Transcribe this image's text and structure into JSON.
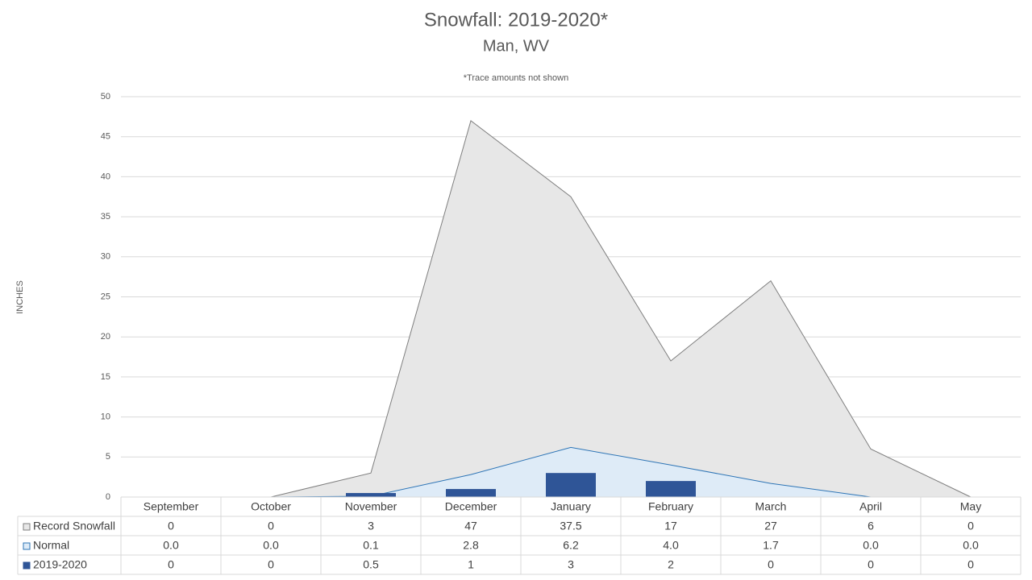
{
  "chart_data": {
    "type": "combo",
    "title": "Snowfall: 2019-2020*",
    "subtitle": "Man, WV",
    "annotation": "*Trace amounts not shown",
    "y_label": "INCHES",
    "categories": [
      "September",
      "October",
      "November",
      "December",
      "January",
      "February",
      "March",
      "April",
      "May"
    ],
    "series": [
      {
        "name": "Record Snowfall",
        "type": "area",
        "color": "#e7e7e7",
        "line_color": "#7f7f7f",
        "values": [
          0,
          0,
          3,
          47,
          37.5,
          17,
          27,
          6,
          0
        ]
      },
      {
        "name": "Normal",
        "type": "area",
        "color": "#deebf7",
        "line_color": "#2e75b6",
        "values": [
          0,
          0,
          0.1,
          2.8,
          6.2,
          4,
          1.7,
          0,
          0
        ],
        "value_labels": [
          "0.0",
          "0.0",
          "0.1",
          "2.8",
          "6.2",
          "4.0",
          "1.7",
          "0.0",
          "0.0"
        ]
      },
      {
        "name": "2019-2020",
        "type": "bar",
        "color": "#2f5597",
        "values": [
          0,
          0,
          0.5,
          1,
          3,
          2,
          0,
          0,
          0
        ]
      }
    ],
    "ylim": [
      0,
      50
    ],
    "yticks": [
      0,
      5,
      10,
      15,
      20,
      25,
      30,
      35,
      40,
      45,
      50
    ],
    "grid": true,
    "data_table": true
  }
}
